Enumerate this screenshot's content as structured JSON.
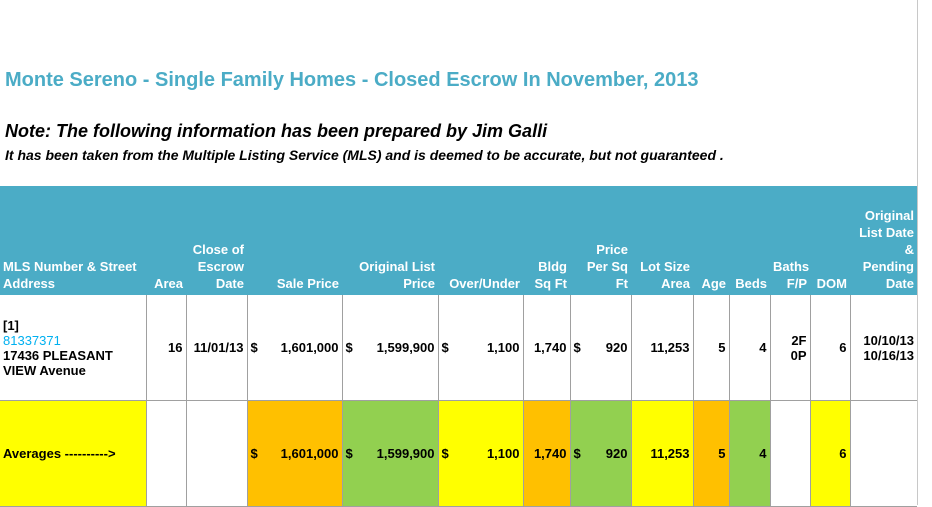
{
  "title": "Monte Sereno - Single Family Homes - Closed Escrow In November, 2013",
  "note": "Note:  The following information has been prepared by Jim Galli",
  "disclaimer": "It has been taken from the Multiple Listing Service (MLS) and is deemed to be accurate, but not guaranteed .",
  "headers": {
    "mls": "MLS Number & Street Address",
    "area": "Area",
    "close": "Close of Escrow Date",
    "sale": "Sale Price",
    "orig": "Original List Price",
    "over": "Over/Under",
    "bldg": "Bldg Sq Ft",
    "ppsf": "Price Per Sq Ft",
    "lot": "Lot Size Area",
    "age": "Age",
    "beds": "Beds",
    "baths": "Baths F/P",
    "dom": "DOM",
    "listdate": "Original List Date & Pending Date"
  },
  "row": {
    "index": "[1]",
    "mls_number": "81337371",
    "address_line1": "17436 PLEASANT",
    "address_line2": "VIEW Avenue",
    "area": "16",
    "close_date": "11/01/13",
    "sale_price": "1,601,000",
    "orig_price": "1,599,900",
    "over_under": "1,100",
    "bldg_sqft": "1,740",
    "price_per_sqft": "920",
    "lot_size": "11,253",
    "age": "5",
    "beds": "4",
    "baths": "2F 0P",
    "dom": "6",
    "list_date": "10/10/13",
    "pending_date": "10/16/13"
  },
  "averages": {
    "label": "Averages ---------->",
    "sale_price": "1,601,000",
    "orig_price": "1,599,900",
    "over_under": "1,100",
    "bldg_sqft": "1,740",
    "price_per_sqft": "920",
    "lot_size": "11,253",
    "age": "5",
    "beds": "4",
    "dom": "6"
  },
  "currency_symbol": "$",
  "colors": {
    "header_bg": "#4bacc6",
    "title": "#4bacc6",
    "yellow": "#ffff00",
    "orange": "#ffc000",
    "green": "#92d050",
    "mls_link": "#00b0f0"
  }
}
